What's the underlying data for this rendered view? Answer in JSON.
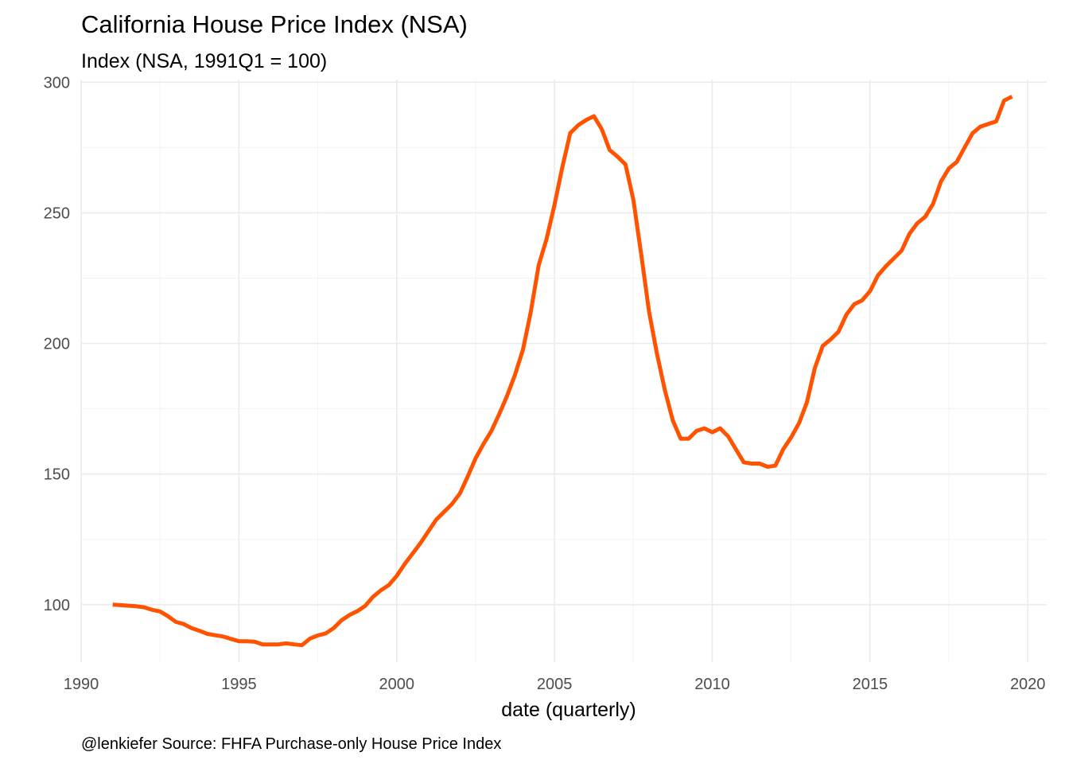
{
  "chart_data": {
    "type": "line",
    "title": "California House Price Index (NSA)",
    "subtitle": "Index (NSA, 1991Q1 = 100)",
    "xlabel": "date (quarterly)",
    "ylabel": "",
    "caption": "@lenkiefer Source: FHFA Purchase-only House Price Index",
    "xlim": [
      1990,
      2020.6
    ],
    "ylim": [
      78,
      301
    ],
    "x_ticks": [
      1990,
      1995,
      2000,
      2005,
      2010,
      2015,
      2020
    ],
    "y_ticks": [
      100,
      150,
      200,
      250,
      300
    ],
    "grid": true,
    "legend": "none",
    "line_color": "#ff5300",
    "series": [
      {
        "x": [
          1991.0,
          1991.25,
          1991.5,
          1991.75,
          1992.0,
          1992.25,
          1992.5,
          1992.75,
          1993.0,
          1993.25,
          1993.5,
          1993.75,
          1994.0,
          1994.25,
          1994.5,
          1994.75,
          1995.0,
          1995.25,
          1995.5,
          1995.75,
          1996.0,
          1996.25,
          1996.5,
          1996.75,
          1997.0,
          1997.25,
          1997.5,
          1997.75,
          1998.0,
          1998.25,
          1998.5,
          1998.75,
          1999.0,
          1999.25,
          1999.5,
          1999.75,
          2000.0,
          2000.25,
          2000.5,
          2000.75,
          2001.0,
          2001.25,
          2001.5,
          2001.75,
          2002.0,
          2002.25,
          2002.5,
          2002.75,
          2003.0,
          2003.25,
          2003.5,
          2003.75,
          2004.0,
          2004.25,
          2004.5,
          2004.75,
          2005.0,
          2005.25,
          2005.5,
          2005.75,
          2006.0,
          2006.25,
          2006.5,
          2006.75,
          2007.0,
          2007.25,
          2007.5,
          2007.75,
          2008.0,
          2008.25,
          2008.5,
          2008.75,
          2009.0,
          2009.25,
          2009.5,
          2009.75,
          2010.0,
          2010.25,
          2010.5,
          2010.75,
          2011.0,
          2011.25,
          2011.5,
          2011.75,
          2012.0,
          2012.25,
          2012.5,
          2012.75,
          2013.0,
          2013.25,
          2013.5,
          2013.75,
          2014.0,
          2014.25,
          2014.5,
          2014.75,
          2015.0,
          2015.25,
          2015.5,
          2015.75,
          2016.0,
          2016.25,
          2016.5,
          2016.75,
          2017.0,
          2017.25,
          2017.5,
          2017.75,
          2018.0,
          2018.25,
          2018.5,
          2018.75,
          2019.0,
          2019.25,
          2019.5
        ],
        "y": [
          100,
          99.8,
          99.6,
          99.4,
          99.0,
          98.0,
          97.4,
          95.6,
          93.4,
          92.6,
          91.0,
          90.0,
          88.8,
          88.3,
          87.8,
          86.9,
          86.0,
          86.0,
          85.8,
          84.8,
          84.8,
          84.8,
          85.2,
          84.8,
          84.5,
          87.0,
          88.2,
          89.0,
          91.0,
          94.0,
          96.0,
          97.5,
          99.5,
          103.0,
          105.5,
          107.5,
          111.0,
          115.5,
          119.5,
          123.5,
          128.0,
          132.5,
          135.5,
          138.5,
          142.5,
          149.0,
          156.0,
          161.5,
          166.5,
          173.0,
          180.0,
          188.0,
          197.5,
          212.0,
          230.0,
          240.0,
          253.0,
          267.5,
          280.5,
          283.5,
          285.5,
          287.0,
          282.0,
          274.0,
          271.5,
          268.5,
          255.0,
          234.0,
          212.0,
          196.0,
          182.0,
          170.5,
          163.5,
          163.5,
          166.5,
          167.5,
          166.0,
          167.5,
          164.5,
          159.5,
          154.5,
          154.0,
          154.0,
          152.8,
          153.2,
          159.5,
          164.0,
          169.5,
          177.5,
          190.5,
          199.0,
          201.5,
          204.5,
          211.0,
          215.0,
          216.5,
          220.0,
          226.0,
          229.5,
          232.5,
          235.5,
          242.0,
          246.0,
          248.5,
          253.5,
          262.0,
          267.0,
          269.5,
          275.0,
          280.5,
          283.0,
          284.0,
          285.0,
          293.0,
          294.5
        ]
      }
    ]
  }
}
